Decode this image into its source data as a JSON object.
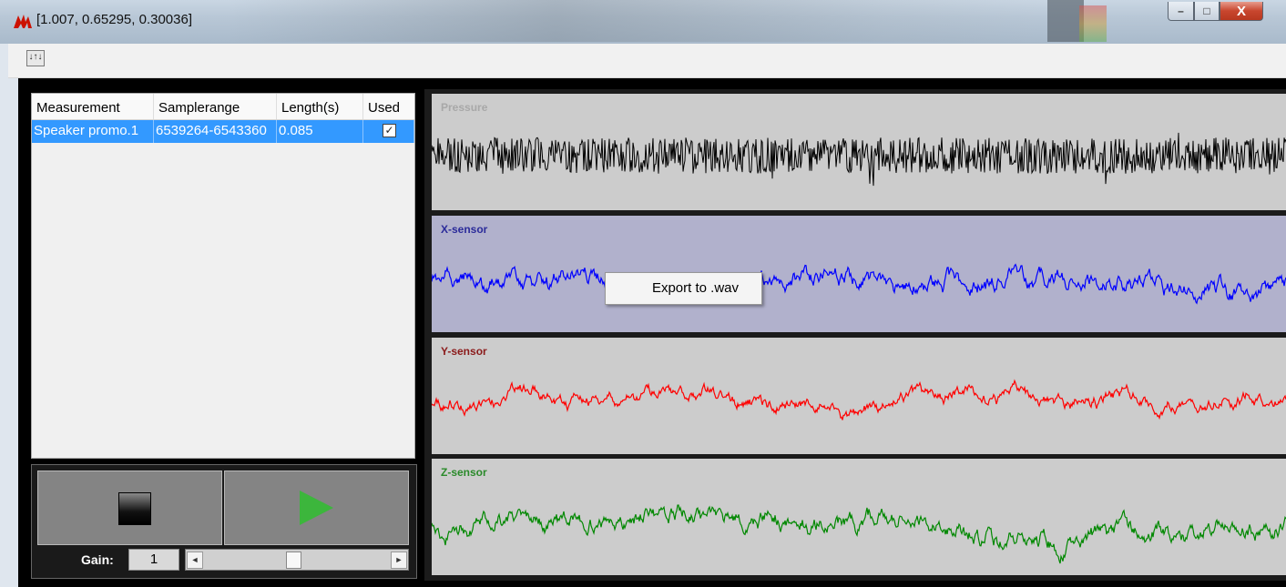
{
  "window": {
    "title": "[1.007, 0.65295, 0.30036]",
    "buttons": {
      "minimize": "–",
      "maximize": "□",
      "close": "X"
    }
  },
  "toolbar": {
    "tool_icon": "↓↑↓"
  },
  "table": {
    "columns": [
      "Measurement",
      "Samplerange",
      "Length(s)",
      "Used"
    ],
    "rows": [
      {
        "measurement": "Speaker promo.1",
        "samplerange": "6539264-6543360",
        "length": "0.085",
        "used": "✓"
      }
    ]
  },
  "transport": {
    "gain_label": "Gain:",
    "gain_value": "1",
    "slider_left_arrow": "◄",
    "slider_right_arrow": "►"
  },
  "plots": [
    {
      "label": "Pressure",
      "label_color": "#a8a8a8",
      "trace_color": "#000000",
      "amplitude": 0.9,
      "smooth": 0.05,
      "seed": 3
    },
    {
      "label": "X-sensor",
      "label_color": "#2b2b9a",
      "trace_color": "#0000ff",
      "amplitude": 1.0,
      "smooth": 0.82,
      "seed": 11
    },
    {
      "label": "Y-sensor",
      "label_color": "#8b1a1a",
      "trace_color": "#ff0000",
      "amplitude": 0.75,
      "smooth": 0.86,
      "seed": 23
    },
    {
      "label": "Z-sensor",
      "label_color": "#2a8a2a",
      "trace_color": "#008800",
      "amplitude": 1.0,
      "smooth": 0.84,
      "seed": 37
    }
  ],
  "context_menu": {
    "items": [
      "Export to .wav"
    ]
  },
  "colors": {
    "selection": "#3399ff",
    "frame": "#000000"
  }
}
